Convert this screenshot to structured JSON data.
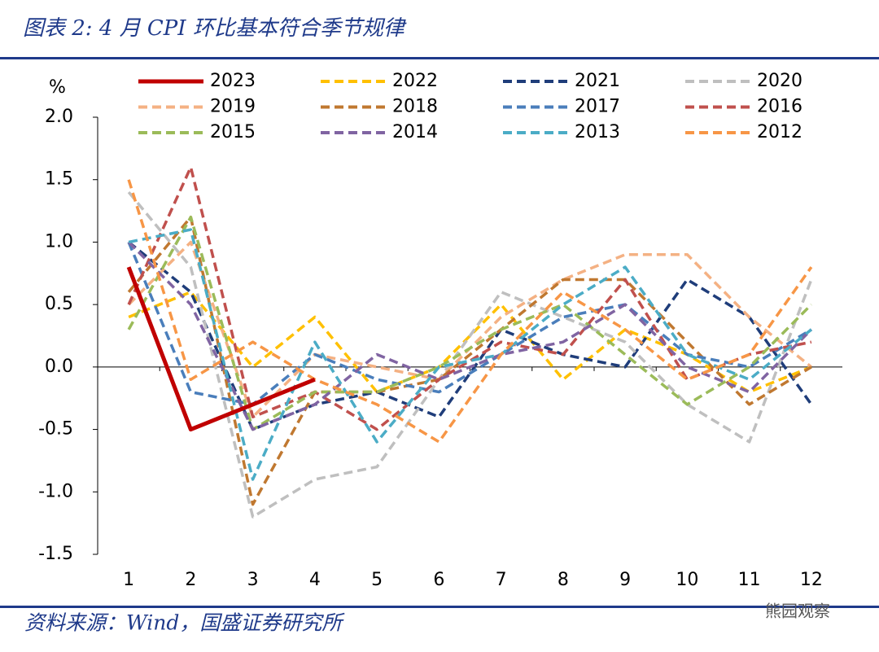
{
  "chart_data": {
    "type": "line",
    "title": "图表 2: 4 月 CPI 环比基本符合季节规律",
    "y_label": "%",
    "source": "资料来源：Wind，国盛证券研究所",
    "watermark": "熊园观察",
    "categories": [
      1,
      2,
      3,
      4,
      5,
      6,
      7,
      8,
      9,
      10,
      11,
      12
    ],
    "ylim": [
      -1.5,
      2.0
    ],
    "yticks": [
      {
        "value": 2.0,
        "label": "2.0"
      },
      1.5,
      {
        "value": 1.0,
        "label": "1.0"
      },
      0.5,
      {
        "value": 0.0,
        "label": "0.0"
      },
      -0.5,
      {
        "value": -1.0,
        "label": "-1.0"
      },
      -1.5
    ],
    "series": [
      {
        "name": "2023",
        "color": "#c00000",
        "style": "solid",
        "values": [
          0.8,
          -0.5,
          -0.3,
          -0.1,
          null,
          null,
          null,
          null,
          null,
          null,
          null,
          null
        ]
      },
      {
        "name": "2022",
        "color": "#ffc000",
        "style": "dashed",
        "values": [
          0.4,
          0.6,
          0.0,
          0.4,
          -0.2,
          0.0,
          0.5,
          -0.1,
          0.3,
          0.1,
          -0.2,
          0.0
        ]
      },
      {
        "name": "2021",
        "color": "#1f3d7a",
        "style": "dashed",
        "values": [
          1.0,
          0.6,
          -0.5,
          -0.3,
          -0.2,
          -0.4,
          0.3,
          0.1,
          0.0,
          0.7,
          0.4,
          -0.3
        ]
      },
      {
        "name": "2020",
        "color": "#bfbfbf",
        "style": "dashed",
        "values": [
          1.4,
          0.8,
          -1.2,
          -0.9,
          -0.8,
          -0.1,
          0.6,
          0.4,
          0.2,
          -0.3,
          -0.6,
          0.7
        ]
      },
      {
        "name": "2019",
        "color": "#f4b183",
        "style": "dashed",
        "values": [
          0.5,
          1.0,
          -0.4,
          0.1,
          0.0,
          -0.1,
          0.4,
          0.7,
          0.9,
          0.9,
          0.4,
          0.0
        ]
      },
      {
        "name": "2018",
        "color": "#c07830",
        "style": "dashed",
        "values": [
          0.6,
          1.2,
          -1.1,
          -0.2,
          -0.2,
          -0.1,
          0.3,
          0.7,
          0.7,
          0.2,
          -0.3,
          0.0
        ]
      },
      {
        "name": "2017",
        "color": "#4a7ebb",
        "style": "dashed",
        "values": [
          1.0,
          -0.2,
          -0.3,
          0.1,
          -0.1,
          -0.2,
          0.1,
          0.4,
          0.5,
          0.1,
          0.0,
          0.3
        ]
      },
      {
        "name": "2016",
        "color": "#c0504d",
        "style": "dashed",
        "values": [
          0.5,
          1.6,
          -0.4,
          -0.2,
          -0.5,
          -0.1,
          0.2,
          0.1,
          0.7,
          -0.1,
          0.1,
          0.2
        ]
      },
      {
        "name": "2015",
        "color": "#9bbb59",
        "style": "dashed",
        "values": [
          0.3,
          1.2,
          -0.5,
          -0.2,
          -0.2,
          0.0,
          0.3,
          0.5,
          0.1,
          -0.3,
          0.0,
          0.5
        ]
      },
      {
        "name": "2014",
        "color": "#8064a2",
        "style": "dashed",
        "values": [
          1.0,
          0.5,
          -0.5,
          -0.3,
          0.1,
          -0.1,
          0.1,
          0.2,
          0.5,
          0.0,
          -0.2,
          0.3
        ]
      },
      {
        "name": "2013",
        "color": "#4bacc6",
        "style": "dashed",
        "values": [
          1.0,
          1.1,
          -0.9,
          0.2,
          -0.6,
          0.0,
          0.1,
          0.5,
          0.8,
          0.1,
          -0.1,
          0.3
        ]
      },
      {
        "name": "2012",
        "color": "#f79646",
        "style": "dashed",
        "values": [
          1.5,
          -0.1,
          0.2,
          -0.1,
          -0.3,
          -0.6,
          0.1,
          0.6,
          0.3,
          -0.1,
          0.1,
          0.8
        ]
      }
    ]
  }
}
